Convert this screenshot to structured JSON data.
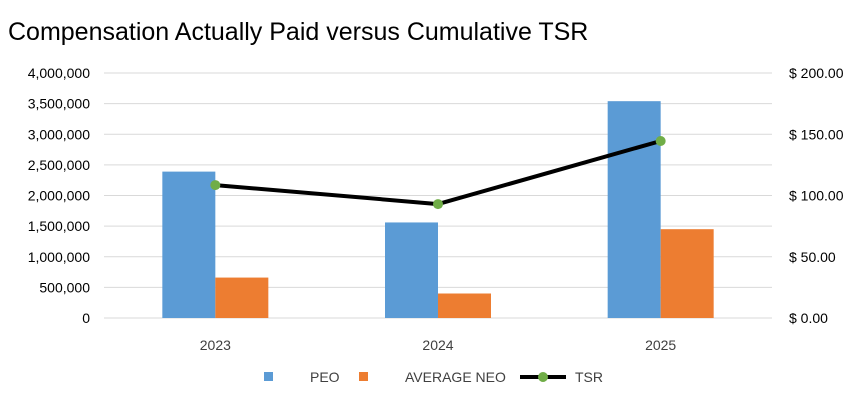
{
  "chart_data": {
    "type": "bar",
    "title": "Compensation Actually Paid versus Cumulative TSR",
    "categories": [
      "2023",
      "2024",
      "2025"
    ],
    "series": [
      {
        "name": "PEO",
        "kind": "bar",
        "axis": "left",
        "color": "#5B9BD5",
        "values": [
          2390000,
          1560000,
          3540000
        ]
      },
      {
        "name": "AVERAGE NEO",
        "kind": "bar",
        "axis": "left",
        "color": "#ED7D31",
        "values": [
          660000,
          400000,
          1450000
        ]
      },
      {
        "name": "TSR",
        "kind": "line",
        "axis": "right",
        "color": "#000000",
        "marker_color": "#70AD47",
        "values": [
          108.5,
          93,
          144.5
        ]
      }
    ],
    "y_left": {
      "ylim": [
        0,
        4000000
      ],
      "ticks": [
        "4,000,000",
        "3,500,000",
        "3,000,000",
        "2,500,000",
        "2,000,000",
        "1,500,000",
        "1,000,000",
        "500,000",
        "0"
      ]
    },
    "y_right": {
      "ylim": [
        0,
        200
      ],
      "ticks": [
        "$ 200.00",
        "$ 150.00",
        "$ 100.00",
        "$ 50.00",
        "$ 0.00"
      ]
    },
    "grid": true,
    "legend": "bottom"
  }
}
